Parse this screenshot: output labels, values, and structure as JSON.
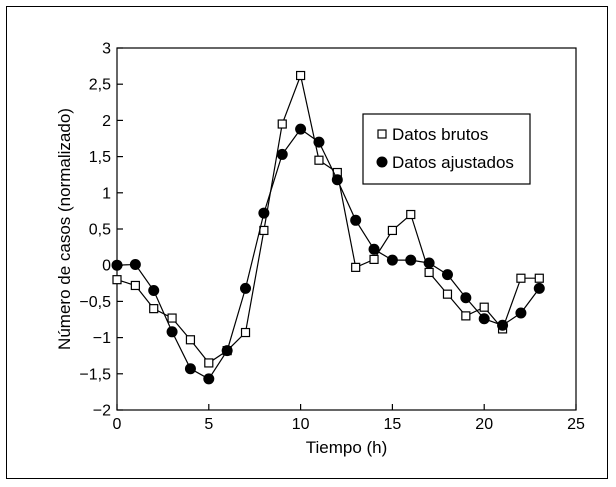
{
  "chart_data": {
    "type": "line",
    "title": "",
    "xlabel": "Tiempo (h)",
    "ylabel": "Número de casos (normalizado)",
    "xlim": [
      0,
      25
    ],
    "ylim": [
      -2,
      3
    ],
    "x_ticks": [
      0,
      5,
      10,
      15,
      20,
      25
    ],
    "x_tick_labels": [
      "0",
      "5",
      "10",
      "15",
      "20",
      "25"
    ],
    "y_ticks": [
      3,
      2.5,
      2,
      1.5,
      1,
      0.5,
      0,
      -0.5,
      -1,
      -1.5,
      -2
    ],
    "y_tick_labels": [
      "3",
      "2,5",
      "2",
      "1,5",
      "1",
      "0,5",
      "0",
      "−0,5",
      "−1",
      "−1,5",
      "−2"
    ],
    "grid": false,
    "legend_position": "top-right",
    "series": [
      {
        "name": "Datos brutos",
        "marker": "open-square",
        "color": "#000000",
        "x": [
          0,
          1,
          2,
          3,
          4,
          5,
          6,
          7,
          8,
          9,
          10,
          11,
          12,
          13,
          14,
          15,
          16,
          17,
          18,
          19,
          20,
          21,
          22,
          23
        ],
        "y": [
          -0.2,
          -0.28,
          -0.6,
          -0.73,
          -1.03,
          -1.35,
          -1.18,
          -0.93,
          0.48,
          1.95,
          2.62,
          1.45,
          1.28,
          -0.03,
          0.08,
          0.48,
          0.7,
          -0.1,
          -0.4,
          -0.7,
          -0.58,
          -0.88,
          -0.18,
          -0.18
        ]
      },
      {
        "name": "Datos ajustados",
        "marker": "filled-circle",
        "color": "#000000",
        "x": [
          0,
          1,
          2,
          3,
          4,
          5,
          6,
          7,
          8,
          9,
          10,
          11,
          12,
          13,
          14,
          15,
          16,
          17,
          18,
          19,
          20,
          21,
          22,
          23
        ],
        "y": [
          0.0,
          0.01,
          -0.35,
          -0.92,
          -1.43,
          -1.57,
          -1.18,
          -0.32,
          0.72,
          1.53,
          1.88,
          1.7,
          1.18,
          0.62,
          0.22,
          0.07,
          0.07,
          0.03,
          -0.13,
          -0.45,
          -0.74,
          -0.83,
          -0.66,
          -0.32
        ]
      }
    ]
  }
}
